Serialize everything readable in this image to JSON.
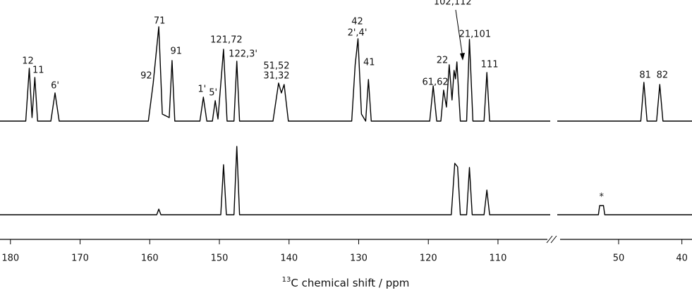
{
  "chart_data": {
    "type": "line",
    "xlabel_sup": "13",
    "xlabel": "C chemical shift / ppm",
    "xlim": [
      [
        181.5,
        102.5
      ],
      [
        59.7,
        38.4
      ]
    ],
    "xticks": [
      180,
      170,
      160,
      150,
      140,
      130,
      120,
      110,
      50,
      40
    ],
    "ylim": [
      0,
      140
    ],
    "series": [
      {
        "color": "#000000",
        "x": [
          181.5,
          177.8,
          177.3,
          176.9,
          176.5,
          176.1,
          174.2,
          173.6,
          173.0,
          160.2,
          159.5,
          158.7,
          158.2,
          157.2,
          156.8,
          156.4,
          152.8,
          152.3,
          151.8,
          151.0,
          150.6,
          150.2,
          149.4,
          148.9,
          147.9,
          147.5,
          147.1,
          142.3,
          141.5,
          141.1,
          140.7,
          140.1,
          131.0,
          130.5,
          130.1,
          129.6,
          129.0,
          128.6,
          128.2,
          119.8,
          119.3,
          118.8,
          118.2,
          117.8,
          117.4,
          117.0,
          116.6,
          116.3,
          116.1,
          115.9,
          115.4,
          114.5,
          114.1,
          113.6,
          112.0,
          111.6,
          111.2,
          102.5,
          null,
          59.7,
          46.5,
          46.0,
          45.5,
          44.0,
          43.5,
          43.0,
          38.4
        ],
        "values": [
          0,
          0,
          75,
          5,
          62,
          0,
          0,
          40,
          0,
          0,
          54,
          134,
          10,
          5,
          86,
          0,
          0,
          34,
          0,
          0,
          29,
          3,
          102,
          0,
          0,
          85,
          0,
          0,
          54,
          40,
          52,
          0,
          0,
          80,
          117,
          10,
          0,
          59,
          0,
          0,
          50,
          0,
          0,
          44,
          20,
          80,
          30,
          72,
          60,
          84,
          0,
          0,
          116,
          0,
          0,
          69,
          0,
          0,
          null,
          0,
          0,
          55,
          0,
          0,
          52,
          0,
          0
        ],
        "annotations": [
          {
            "text": "12",
            "x": 177.5,
            "y": 85
          },
          {
            "text": "11",
            "x": 176.0,
            "y": 72
          },
          {
            "text": "6'",
            "x": 173.6,
            "y": 50
          },
          {
            "text": "92",
            "x": 160.5,
            "y": 64
          },
          {
            "text": "71",
            "x": 158.6,
            "y": 142
          },
          {
            "text": "91",
            "x": 156.2,
            "y": 99
          },
          {
            "text": "1'",
            "x": 152.5,
            "y": 45
          },
          {
            "text": "5'",
            "x": 150.9,
            "y": 40
          },
          {
            "text": "121,72",
            "x": 149.0,
            "y": 115
          },
          {
            "text": "122,3'",
            "x": 146.6,
            "y": 95
          },
          {
            "text": "51,52",
            "x": 141.8,
            "y": 78
          },
          {
            "text": "31,32",
            "x": 141.8,
            "y": 64
          },
          {
            "text": "42",
            "x": 130.2,
            "y": 141
          },
          {
            "text": "2',4'",
            "x": 130.2,
            "y": 125
          },
          {
            "text": "41",
            "x": 128.5,
            "y": 83
          },
          {
            "text": "61,62",
            "x": 119.0,
            "y": 55
          },
          {
            "text": "22",
            "x": 118.0,
            "y": 86
          },
          {
            "text": "102,112",
            "x": 116.5,
            "y": 169
          },
          {
            "text": "21,101",
            "x": 113.3,
            "y": 123
          },
          {
            "text": "111",
            "x": 111.2,
            "y": 80
          },
          {
            "text": "81",
            "x": 45.8,
            "y": 65
          },
          {
            "text": "82",
            "x": 43.1,
            "y": 65
          }
        ]
      },
      {
        "color": "#000000",
        "x": [
          181.5,
          159.0,
          158.7,
          158.4,
          149.8,
          149.4,
          149.0,
          147.9,
          147.5,
          147.1,
          116.7,
          116.2,
          115.8,
          115.4,
          114.5,
          114.1,
          113.7,
          112.0,
          111.6,
          111.2,
          102.5,
          null,
          59.7,
          53.2,
          53.0,
          52.4,
          52.2,
          38.4
        ],
        "values": [
          0,
          0,
          8,
          0,
          0,
          71,
          0,
          0,
          97,
          0,
          0,
          73,
          68,
          0,
          0,
          67,
          0,
          0,
          35,
          0,
          0,
          null,
          0,
          0,
          13,
          13,
          0,
          0
        ],
        "annotations": [
          {
            "text": "*",
            "x": 52.7,
            "y": 25
          }
        ]
      }
    ]
  }
}
